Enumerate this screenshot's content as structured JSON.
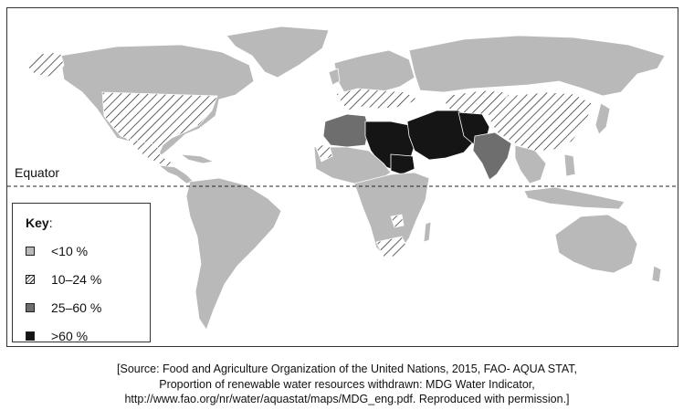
{
  "map": {
    "equator_label": "Equator",
    "key": {
      "title": "Key",
      "title_suffix": ":",
      "items": [
        {
          "label": "<10 %",
          "fill": "light-grey"
        },
        {
          "label": "10–24 %",
          "fill": "hatched"
        },
        {
          "label": "25–60 %",
          "fill": "dark-grey"
        },
        {
          "label": ">60 %",
          "fill": "black"
        }
      ]
    },
    "colors": {
      "light_grey": "#b9b9b9",
      "dark_grey": "#6e6e6e",
      "black": "#151515",
      "hatch_bg": "#ffffff",
      "border": "#ffffff"
    }
  },
  "source": {
    "line1": "[Source: Food and Agriculture Organization of the United Nations, 2015, FAO- AQUA STAT,",
    "line2": "Proportion of renewable water resources withdrawn: MDG Water Indicator,",
    "line3": "http://www.fao.org/nr/water/aquastat/maps/MDG_eng.pdf. Reproduced with permission.]"
  }
}
